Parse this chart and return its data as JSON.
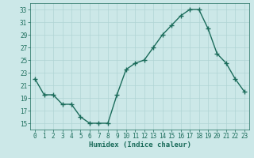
{
  "x": [
    0,
    1,
    2,
    3,
    4,
    5,
    6,
    7,
    8,
    9,
    10,
    11,
    12,
    13,
    14,
    15,
    16,
    17,
    18,
    19,
    20,
    21,
    22,
    23
  ],
  "y": [
    22,
    19.5,
    19.5,
    18,
    18,
    16,
    15,
    15,
    15,
    19.5,
    23.5,
    24.5,
    25,
    27,
    29,
    30.5,
    32,
    33,
    33,
    30,
    26,
    24.5,
    22,
    20
  ],
  "line_color": "#1a6b5a",
  "marker": "+",
  "marker_color": "#1a6b5a",
  "bg_color": "#cce8e8",
  "grid_color": "#b0d4d4",
  "xlabel": "Humidex (Indice chaleur)",
  "xlim": [
    -0.5,
    23.5
  ],
  "ylim": [
    14,
    34
  ],
  "yticks": [
    15,
    17,
    19,
    21,
    23,
    25,
    27,
    29,
    31,
    33
  ],
  "xticks": [
    0,
    1,
    2,
    3,
    4,
    5,
    6,
    7,
    8,
    9,
    10,
    11,
    12,
    13,
    14,
    15,
    16,
    17,
    18,
    19,
    20,
    21,
    22,
    23
  ],
  "tick_color": "#1a6b5a",
  "label_fontsize": 6.5,
  "tick_fontsize": 5.5,
  "line_width": 1.0,
  "marker_size": 4.0
}
